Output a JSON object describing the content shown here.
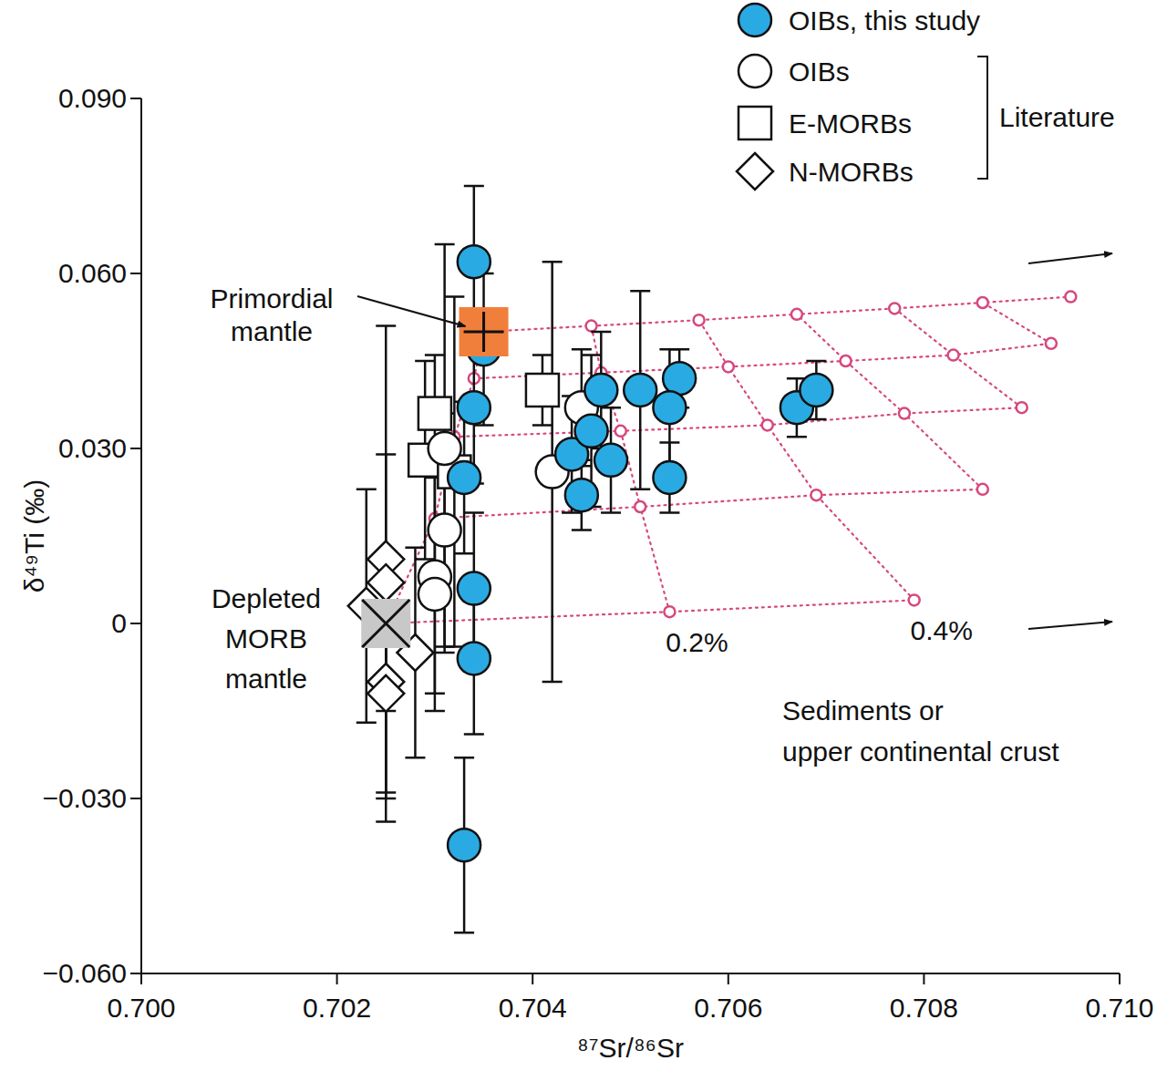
{
  "chart_data": {
    "type": "scatter",
    "x_label": "⁸⁷Sr/⁸⁶Sr",
    "y_label": "δ⁴⁹Ti (‰)",
    "xlim": [
      0.7,
      0.71
    ],
    "ylim": [
      -0.06,
      0.09
    ],
    "xticks": [
      {
        "value": 0.7,
        "label": "0.700"
      },
      {
        "value": 0.702,
        "label": "0.702"
      },
      {
        "value": 0.704,
        "label": "0.704"
      },
      {
        "value": 0.706,
        "label": "0.706"
      },
      {
        "value": 0.708,
        "label": "0.708"
      },
      {
        "value": 0.71,
        "label": "0.710"
      }
    ],
    "yticks": [
      {
        "value": -0.06,
        "label": "−0.060"
      },
      {
        "value": -0.03,
        "label": "−0.030"
      },
      0,
      {
        "value": 0.03,
        "label": "0.030"
      },
      {
        "value": 0.06,
        "label": "0.060"
      },
      {
        "value": 0.09,
        "label": "0.090"
      }
    ],
    "grid": false,
    "legend": "upper right",
    "legend_group_label": "Literature",
    "series": [
      {
        "name": "OIBs, this study",
        "color": "#2aaae2",
        "marker": "circle",
        "x": [
          0.7034,
          0.7035,
          0.7034,
          0.7033,
          0.7034,
          0.7034,
          0.7033,
          0.7047,
          0.7051,
          0.7055,
          0.7054,
          0.7054,
          0.7044,
          0.7046,
          0.7048,
          0.7045,
          0.7067,
          0.7069
        ],
        "values": [
          0.062,
          0.047,
          0.037,
          0.025,
          0.006,
          -0.006,
          -0.038,
          0.04,
          0.04,
          0.042,
          0.037,
          0.025,
          0.029,
          0.033,
          0.028,
          0.022,
          0.037,
          0.04
        ],
        "errors": [
          0.013,
          0.013,
          0.013,
          0.013,
          0.013,
          0.013,
          0.015,
          0.01,
          0.017,
          0.005,
          0.01,
          0.006,
          0.01,
          0.013,
          0.009,
          0.006,
          0.005,
          0.005
        ]
      },
      {
        "name": "OIBs",
        "color": "#ffffff",
        "marker": "circle",
        "x": [
          0.7031,
          0.7031,
          0.703,
          0.703,
          0.7042,
          0.7045
        ],
        "values": [
          0.03,
          0.016,
          0.008,
          0.005,
          0.026,
          0.037
        ],
        "errors": [
          0.035,
          0.02,
          0.02,
          0.02,
          0.036,
          0.01
        ]
      },
      {
        "name": "E-MORBs",
        "color": "#ffffff",
        "marker": "square",
        "x": [
          0.703,
          0.7029,
          0.7032,
          0.7041
        ],
        "values": [
          0.036,
          0.028,
          0.026,
          0.04
        ],
        "errors": [
          0.01,
          0.017,
          0.03,
          0.006
        ]
      },
      {
        "name": "N-MORBs",
        "color": "#ffffff",
        "marker": "diamond",
        "x": [
          0.7025,
          0.7025,
          0.7023,
          0.7028,
          0.7025,
          0.7025
        ],
        "values": [
          0.011,
          0.007,
          0.003,
          -0.005,
          -0.01,
          -0.012
        ],
        "errors": [
          0.04,
          0.022,
          0.02,
          0.018,
          0.02,
          0.022
        ]
      }
    ],
    "endmembers": [
      {
        "label_lines": [
          "Primordial",
          "mantle"
        ],
        "x": 0.7035,
        "y": 0.05,
        "color": "#f07f3c",
        "marker": "square-plus"
      },
      {
        "label_lines": [
          "Depleted",
          "MORB",
          "mantle"
        ],
        "x": 0.7025,
        "y": 0,
        "color": "#c8c8c8",
        "marker": "square-cross"
      }
    ],
    "mixing_grid": {
      "color": "#d6487e",
      "line_style": "dotted",
      "marker": "circle",
      "labels": [
        "0.2%",
        "0.4%"
      ],
      "curves": [
        {
          "x": [
            0.7025,
            0.7054,
            0.7079
          ],
          "values": [
            0,
            0.002,
            0.004
          ]
        },
        {
          "x": [
            0.703,
            0.7051,
            0.7069,
            0.7086
          ],
          "values": [
            0.018,
            0.02,
            0.022,
            0.023
          ]
        },
        {
          "x": [
            0.7032,
            0.7049,
            0.7064,
            0.7078,
            0.709
          ],
          "values": [
            0.032,
            0.033,
            0.034,
            0.036,
            0.037
          ]
        },
        {
          "x": [
            0.7034,
            0.7047,
            0.706,
            0.7072,
            0.7083,
            0.7093
          ],
          "values": [
            0.042,
            0.043,
            0.044,
            0.045,
            0.046,
            0.048
          ]
        },
        {
          "x": [
            0.7035,
            0.7046,
            0.7057,
            0.7067,
            0.7077,
            0.7086,
            0.7095
          ],
          "values": [
            0.05,
            0.051,
            0.052,
            0.053,
            0.054,
            0.055,
            0.056
          ]
        }
      ]
    },
    "sediment_label_lines": [
      "Sediments or",
      "upper continental crust"
    ]
  }
}
